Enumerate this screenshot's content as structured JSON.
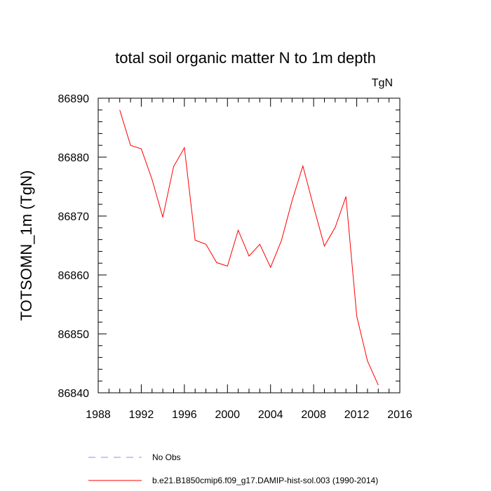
{
  "chart_data": {
    "type": "line",
    "title": "total soil organic matter N to 1m depth",
    "units": "TgN",
    "ylabel": "TOTSOMN_1m  (TgN)",
    "xlabel": "",
    "xlim": [
      1988,
      2016
    ],
    "ylim": [
      86840,
      86890
    ],
    "xticks": [
      "1988",
      "1992",
      "1996",
      "2000",
      "2004",
      "2008",
      "2012",
      "2016"
    ],
    "yticks": [
      "86840",
      "86850",
      "86860",
      "86870",
      "86880",
      "86890"
    ],
    "grid": false,
    "legend": [
      {
        "label": "No Obs",
        "color": "#8a8cff",
        "dash": true
      },
      {
        "label": "b.e21.B1850cmip6.f09_g17.DAMIP-hist-sol.003 (1990-2014)",
        "color": "#ff0000",
        "dash": false
      }
    ],
    "series": [
      {
        "name": "b.e21.B1850cmip6.f09_g17.DAMIP-hist-sol.003 (1990-2014)",
        "color": "#ff0000",
        "x": [
          1990,
          1991,
          1992,
          1993,
          1994,
          1995,
          1996,
          1997,
          1998,
          1999,
          2000,
          2001,
          2002,
          2003,
          2004,
          2005,
          2006,
          2007,
          2008,
          2009,
          2010,
          2011,
          2012,
          2013,
          2014
        ],
        "y": [
          86888.0,
          86882.0,
          86881.4,
          86876.2,
          86869.8,
          86878.4,
          86881.6,
          86865.9,
          86865.2,
          86862.1,
          86861.5,
          86867.6,
          86863.2,
          86865.2,
          86861.3,
          86865.8,
          86872.6,
          86878.5,
          86871.6,
          86864.9,
          86868.1,
          86873.3,
          86853.0,
          86845.4,
          86841.3
        ]
      }
    ]
  }
}
